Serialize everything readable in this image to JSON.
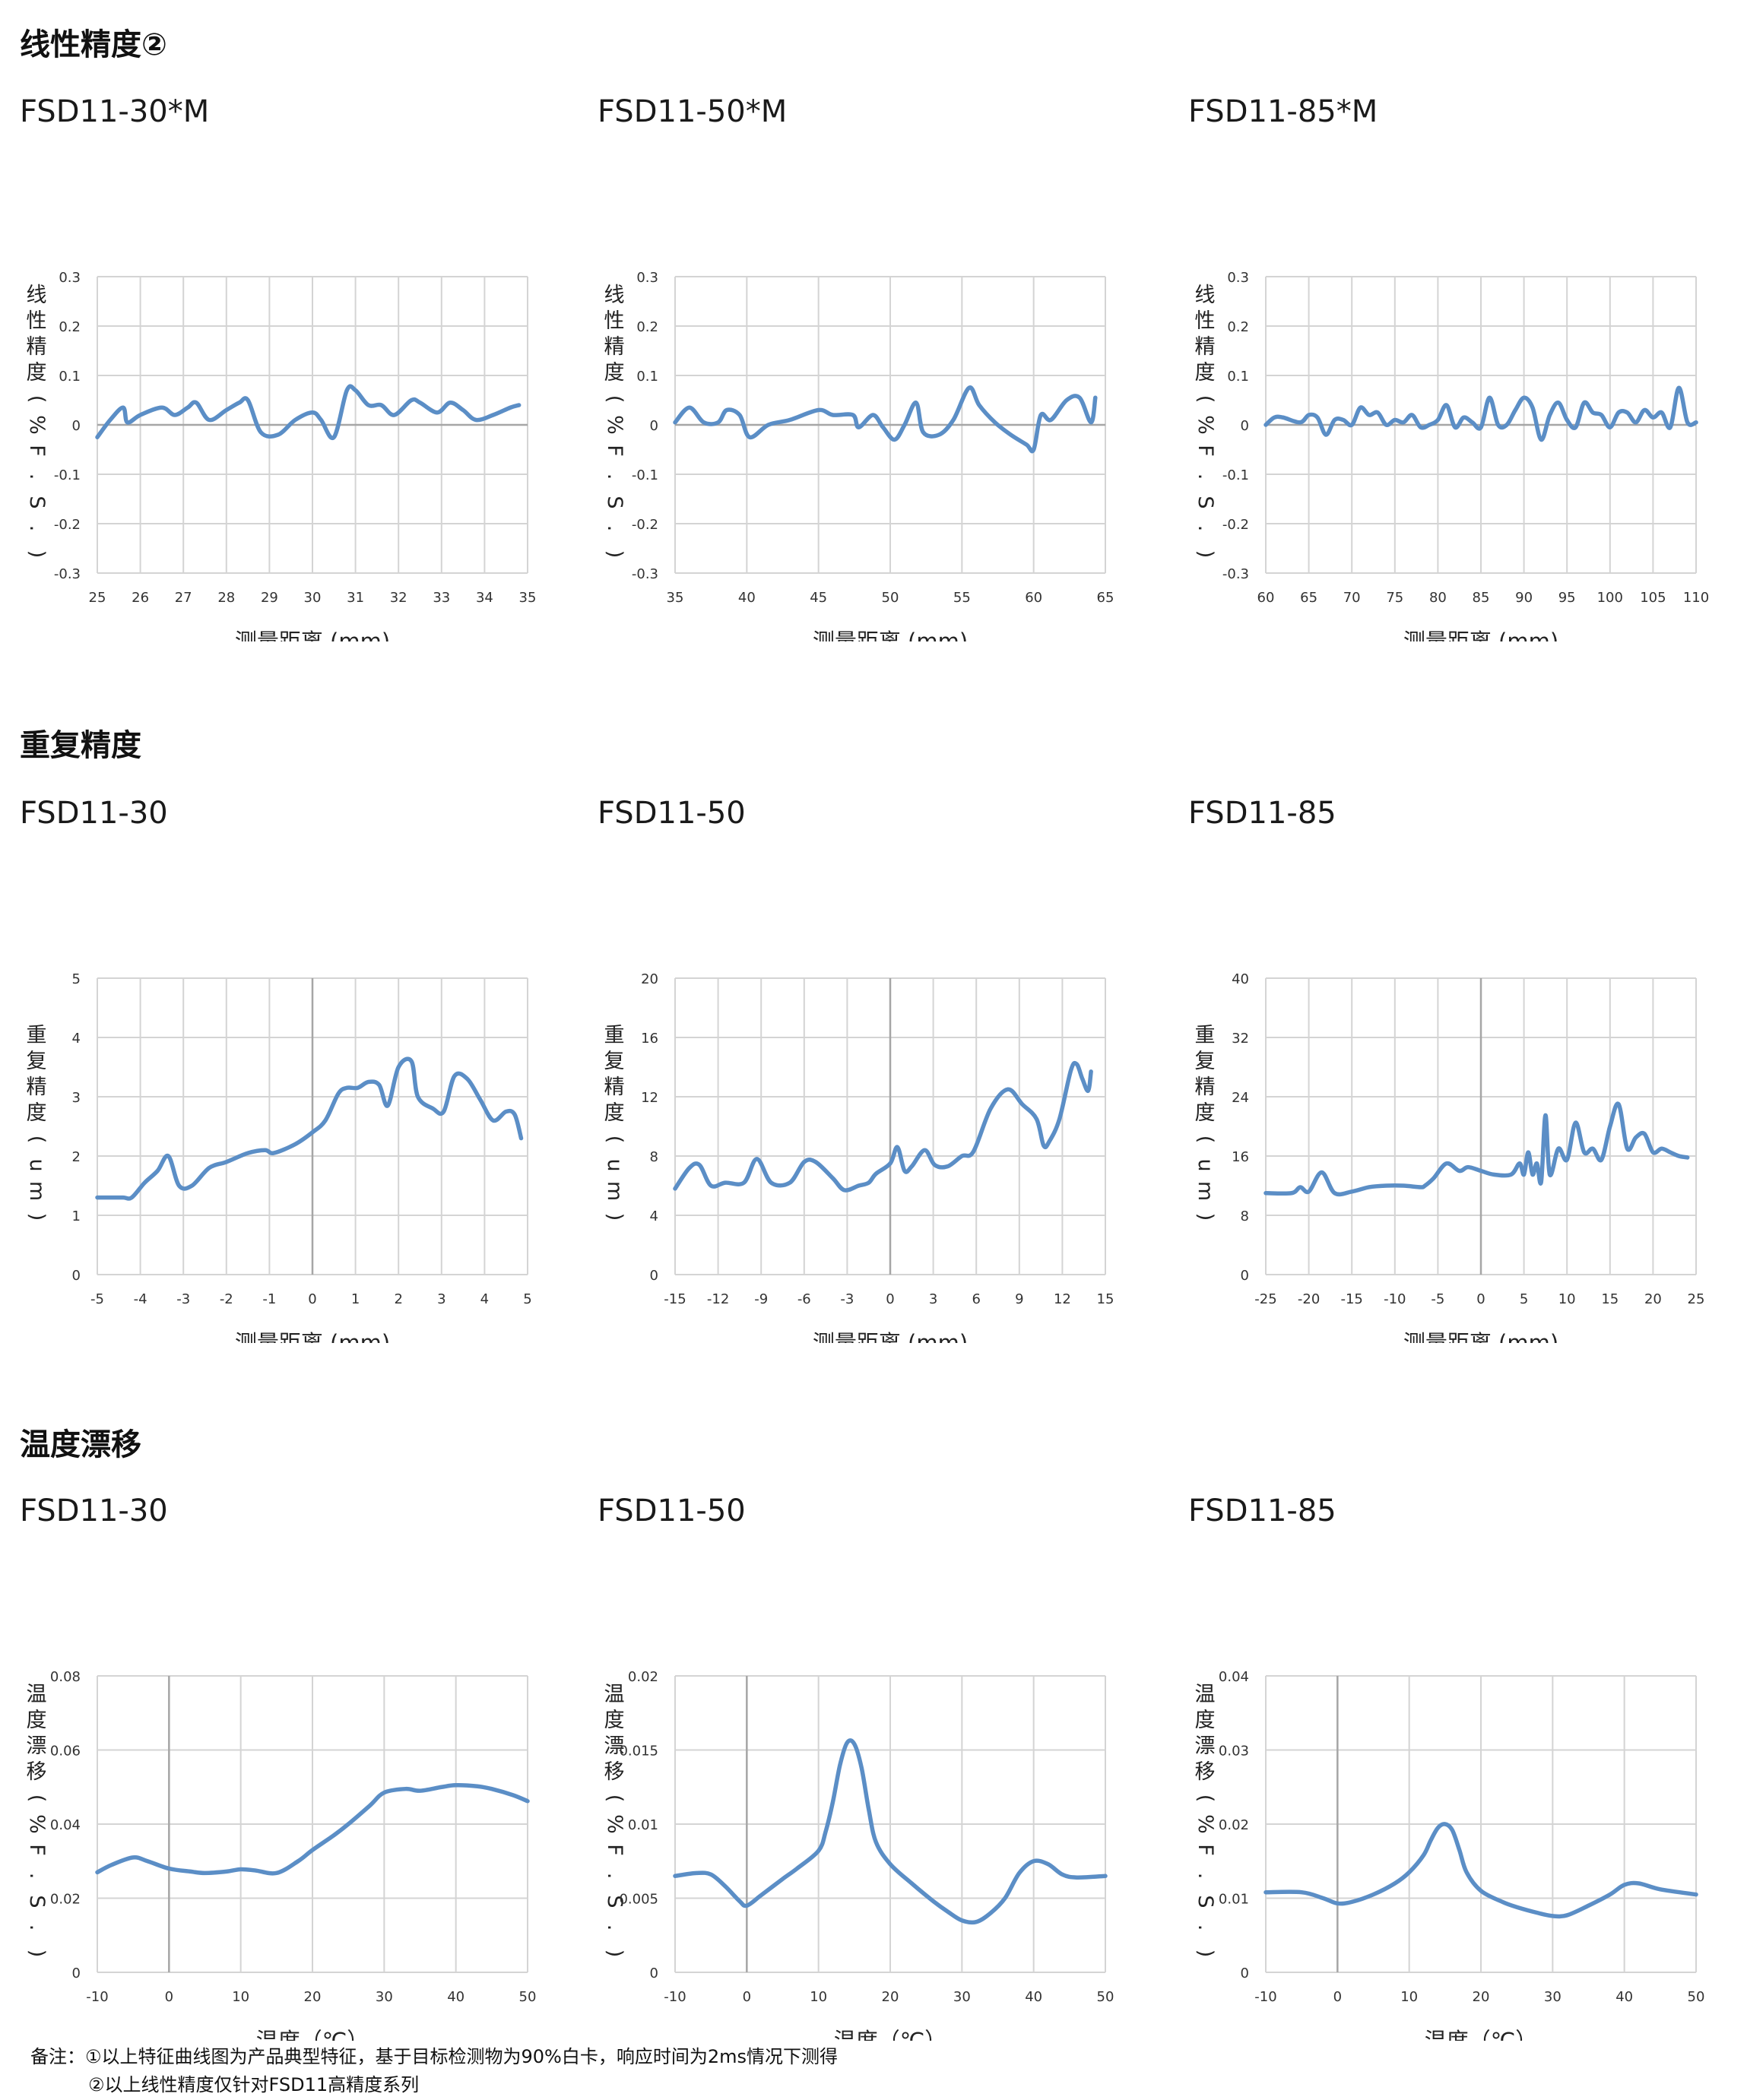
{
  "sections": [
    {
      "title": "线性精度②",
      "chart_indices": [
        0,
        1,
        2
      ]
    },
    {
      "title": "重复精度",
      "chart_indices": [
        3,
        4,
        5
      ]
    },
    {
      "title": "温度漂移",
      "chart_indices": [
        6,
        7,
        8
      ]
    }
  ],
  "notes": {
    "prefix": "备注：",
    "line1": "①以上特征曲线图为产品典型特征，基于目标检测物为90%白卡，响应时间为2ms情况下测得",
    "line2": "②以上线性精度仅针对FSD11高精度系列"
  },
  "colors": {
    "line": "#5b8ec6",
    "grid": "#d4d4d4",
    "axis": "#a6a6a6"
  },
  "chart_data": [
    {
      "type": "line",
      "title": "FSD11-30*M",
      "xlabel": "测量距离 (mm)",
      "ylabel": "线性精度 (%F.S.)",
      "xlim": [
        25,
        35
      ],
      "ylim": [
        -0.3,
        0.3
      ],
      "xticks": [
        25,
        26,
        27,
        28,
        29,
        30,
        31,
        32,
        33,
        34,
        35
      ],
      "yticks": [
        -0.3,
        -0.2,
        -0.1,
        0,
        0.1,
        0.2,
        0.3
      ],
      "ytick_labels": [
        "-0.3",
        "-0.2",
        "-0.1",
        "0",
        "0.1",
        "0.2",
        "0.3"
      ],
      "vline_x": null,
      "x": [
        25.0,
        25.3,
        25.6,
        25.7,
        26.0,
        26.5,
        26.8,
        27.1,
        27.3,
        27.6,
        28.0,
        28.3,
        28.5,
        28.8,
        29.2,
        29.6,
        30.0,
        30.2,
        30.5,
        30.8,
        31.0,
        31.3,
        31.6,
        31.9,
        32.3,
        32.5,
        32.9,
        33.2,
        33.5,
        33.8,
        34.2,
        34.6,
        34.8
      ],
      "values": [
        -0.025,
        0.01,
        0.035,
        0.005,
        0.02,
        0.035,
        0.02,
        0.035,
        0.045,
        0.01,
        0.03,
        0.045,
        0.05,
        -0.015,
        -0.02,
        0.01,
        0.025,
        0.01,
        -0.025,
        0.07,
        0.07,
        0.04,
        0.04,
        0.02,
        0.05,
        0.045,
        0.025,
        0.045,
        0.03,
        0.01,
        0.02,
        0.035,
        0.04
      ]
    },
    {
      "type": "line",
      "title": "FSD11-50*M",
      "xlabel": "测量距离 (mm)",
      "ylabel": "线性精度 (%F.S.)",
      "xlim": [
        35,
        65
      ],
      "ylim": [
        -0.3,
        0.3
      ],
      "xticks": [
        35,
        40,
        45,
        50,
        55,
        60,
        65
      ],
      "yticks": [
        -0.3,
        -0.2,
        -0.1,
        0,
        0.1,
        0.2,
        0.3
      ],
      "ytick_labels": [
        "-0.3",
        "-0.2",
        "-0.1",
        "0",
        "0.1",
        "0.2",
        "0.3"
      ],
      "vline_x": null,
      "x": [
        35,
        36,
        37,
        38,
        38.6,
        39.5,
        40.2,
        41.5,
        43,
        45,
        46,
        47.4,
        47.8,
        48.8,
        49.5,
        50.3,
        51,
        51.8,
        52.3,
        53.4,
        54.4,
        55.5,
        56.2,
        57.3,
        58.4,
        59.5,
        60,
        60.5,
        61.2,
        62.3,
        63.2,
        64,
        64.3
      ],
      "values": [
        0.005,
        0.035,
        0.005,
        0.005,
        0.03,
        0.02,
        -0.025,
        0.0,
        0.01,
        0.03,
        0.02,
        0.02,
        -0.005,
        0.02,
        -0.005,
        -0.03,
        0.0,
        0.045,
        -0.015,
        -0.02,
        0.01,
        0.075,
        0.04,
        0.005,
        -0.02,
        -0.04,
        -0.05,
        0.02,
        0.01,
        0.05,
        0.055,
        0.005,
        0.055
      ]
    },
    {
      "type": "line",
      "title": "FSD11-85*M",
      "xlabel": "测量距离 (mm)",
      "ylabel": "线性精度 (%F.S.)",
      "xlim": [
        60,
        110
      ],
      "ylim": [
        -0.3,
        0.3
      ],
      "xticks": [
        60,
        65,
        70,
        75,
        80,
        85,
        90,
        95,
        100,
        105,
        110
      ],
      "ytick_labels": [
        "-0.3",
        "-0.2",
        "-0.1",
        "0",
        "0.1",
        "0.2",
        "0.3"
      ],
      "yticks": [
        -0.3,
        -0.2,
        -0.1,
        0,
        0.1,
        0.2,
        0.3
      ],
      "vline_x": null,
      "x": [
        60,
        61,
        62,
        64,
        65,
        66,
        67,
        68,
        69,
        70,
        71,
        72,
        73,
        74,
        75,
        76,
        77,
        78,
        79,
        80,
        81,
        82,
        83,
        84,
        85,
        86,
        87,
        88,
        89,
        90,
        91,
        92,
        93,
        94,
        95,
        96,
        97,
        98,
        99,
        100,
        101,
        102,
        103,
        104,
        105,
        106,
        107,
        108,
        109,
        110
      ],
      "values": [
        0.0,
        0.015,
        0.015,
        0.005,
        0.02,
        0.015,
        -0.02,
        0.01,
        0.01,
        0.0,
        0.035,
        0.02,
        0.025,
        0.0,
        0.01,
        0.005,
        0.02,
        -0.005,
        0.0,
        0.01,
        0.04,
        -0.005,
        0.015,
        0.005,
        -0.005,
        0.055,
        0.0,
        0.0,
        0.03,
        0.055,
        0.035,
        -0.03,
        0.02,
        0.045,
        0.01,
        -0.005,
        0.045,
        0.025,
        0.02,
        -0.005,
        0.025,
        0.025,
        0.005,
        0.03,
        0.015,
        0.025,
        -0.005,
        0.075,
        0.005,
        0.005
      ]
    },
    {
      "type": "line",
      "title": "FSD11-30",
      "xlabel": "测量距离 (mm)",
      "ylabel": "重复精度 (um)",
      "xlim": [
        -5,
        5
      ],
      "ylim": [
        0,
        5
      ],
      "xticks": [
        -5,
        -4,
        -3,
        -2,
        -1,
        0,
        1,
        2,
        3,
        4,
        5
      ],
      "yticks": [
        0,
        1,
        2,
        3,
        4,
        5
      ],
      "ytick_labels": [
        "0",
        "1",
        "2",
        "3",
        "4",
        "5"
      ],
      "vline_x": 0,
      "x": [
        -5.0,
        -4.7,
        -4.4,
        -4.2,
        -3.9,
        -3.6,
        -3.35,
        -3.1,
        -2.8,
        -2.4,
        -2.0,
        -1.5,
        -1.1,
        -0.9,
        -0.4,
        0.0,
        0.3,
        0.6,
        0.8,
        1.05,
        1.3,
        1.55,
        1.75,
        2.0,
        2.3,
        2.45,
        2.8,
        3.05,
        3.3,
        3.6,
        3.9,
        4.2,
        4.5,
        4.7,
        4.85
      ],
      "values": [
        1.3,
        1.3,
        1.3,
        1.3,
        1.55,
        1.75,
        2.0,
        1.5,
        1.5,
        1.8,
        1.9,
        2.05,
        2.1,
        2.05,
        2.2,
        2.4,
        2.6,
        3.05,
        3.15,
        3.15,
        3.25,
        3.2,
        2.85,
        3.5,
        3.6,
        3.0,
        2.8,
        2.75,
        3.35,
        3.3,
        2.95,
        2.6,
        2.75,
        2.7,
        2.3
      ]
    },
    {
      "type": "line",
      "title": "FSD11-50",
      "xlabel": "测量距离 (mm)",
      "ylabel": "重复精度 (um)",
      "xlim": [
        -15,
        15
      ],
      "ylim": [
        0,
        20
      ],
      "xticks": [
        -15,
        -12,
        -9,
        -6,
        -3,
        0,
        3,
        6,
        9,
        12,
        15
      ],
      "xtick_labels": [
        "-15",
        "-12",
        "-9",
        "-6",
        "-3",
        "0",
        "3",
        "6",
        "9",
        "12",
        "15"
      ],
      "yticks": [
        0,
        4,
        8,
        12,
        16,
        20
      ],
      "ytick_labels": [
        "0",
        "4",
        "8",
        "12",
        "16",
        "20"
      ],
      "vline_x": 0,
      "x": [
        -15.0,
        -14.0,
        -13.3,
        -12.5,
        -11.5,
        -10.2,
        -9.3,
        -8.3,
        -7.0,
        -6.0,
        -5.2,
        -4.0,
        -3.2,
        -2.2,
        -1.5,
        -1.0,
        0.0,
        0.5,
        1.0,
        1.5,
        2.4,
        3.1,
        4.0,
        5.0,
        5.8,
        7.0,
        8.2,
        9.2,
        10.2,
        10.7,
        11.1,
        11.8,
        12.6,
        13.0,
        13.4,
        13.8,
        14.0
      ],
      "values": [
        5.8,
        7.2,
        7.4,
        6.0,
        6.2,
        6.2,
        7.8,
        6.2,
        6.2,
        7.6,
        7.6,
        6.5,
        5.7,
        6.0,
        6.2,
        6.8,
        7.5,
        8.6,
        7.0,
        7.3,
        8.4,
        7.4,
        7.3,
        8.0,
        8.3,
        11.2,
        12.5,
        11.5,
        10.5,
        8.7,
        9.0,
        10.5,
        13.8,
        14.2,
        13.2,
        12.4,
        13.7
      ]
    },
    {
      "type": "line",
      "title": "FSD11-85",
      "xlabel": "测量距离 (mm)",
      "ylabel": "重复精度 (um)",
      "xlim": [
        -25,
        25
      ],
      "ylim": [
        0,
        40
      ],
      "xticks": [
        -25,
        -20,
        -15,
        -10,
        -5,
        0,
        5,
        10,
        15,
        20,
        25
      ],
      "yticks": [
        0,
        8,
        16,
        24,
        32,
        40
      ],
      "ytick_labels": [
        "0",
        "8",
        "16",
        "24",
        "32",
        "40"
      ],
      "vline_x": 0,
      "x": [
        -25.0,
        -22.0,
        -21.0,
        -20.0,
        -18.5,
        -17.0,
        -15.0,
        -13.0,
        -11.0,
        -9.0,
        -7.0,
        -6.5,
        -5.5,
        -4.0,
        -2.5,
        -1.5,
        0.0,
        1.5,
        3.5,
        4.5,
        5.0,
        5.5,
        6.0,
        6.5,
        7.0,
        7.5,
        8.0,
        9.0,
        10.0,
        11.0,
        12.0,
        13.0,
        14.0,
        15.0,
        16.0,
        17.0,
        18.0,
        19.0,
        20.0,
        21.0,
        22.0,
        23.0,
        24.0
      ],
      "values": [
        11.0,
        11.0,
        11.8,
        11.2,
        13.8,
        11.0,
        11.2,
        11.8,
        12.0,
        12.0,
        11.8,
        12.0,
        13.0,
        15.0,
        14.0,
        14.5,
        14.0,
        13.5,
        13.5,
        15.0,
        13.5,
        16.5,
        13.5,
        15.0,
        12.5,
        21.5,
        13.5,
        17.0,
        15.5,
        20.5,
        16.5,
        17.0,
        15.5,
        20.0,
        23.0,
        17.0,
        18.5,
        19.0,
        16.5,
        17.0,
        16.5,
        16.0,
        15.8
      ]
    },
    {
      "type": "line",
      "title": "FSD11-30",
      "xlabel": "温度（℃）",
      "ylabel": "温度漂移 (%F.S.)",
      "xlim": [
        -10,
        50
      ],
      "ylim": [
        0,
        0.08
      ],
      "xticks": [
        -10,
        0,
        10,
        20,
        30,
        40,
        50
      ],
      "yticks": [
        0,
        0.02,
        0.04,
        0.06,
        0.08
      ],
      "ytick_labels": [
        "0",
        "0.02",
        "0.04",
        "0.06",
        "0.08"
      ],
      "vline_x": 0,
      "x": [
        -10,
        -8,
        -5,
        -3,
        0,
        3,
        5,
        8,
        10,
        12,
        15,
        18,
        20,
        23,
        25,
        28,
        30,
        33,
        35,
        38,
        40,
        43,
        45,
        48,
        50
      ],
      "values": [
        0.027,
        0.029,
        0.031,
        0.03,
        0.028,
        0.0272,
        0.0268,
        0.0272,
        0.0278,
        0.0275,
        0.0268,
        0.03,
        0.033,
        0.037,
        0.04,
        0.045,
        0.0485,
        0.0495,
        0.049,
        0.05,
        0.0505,
        0.0502,
        0.0495,
        0.0478,
        0.0462
      ]
    },
    {
      "type": "line",
      "title": "FSD11-50",
      "xlabel": "温度（℃）",
      "ylabel": "温度漂移 (%F.S.)",
      "xlim": [
        -10,
        50
      ],
      "ylim": [
        0,
        0.02
      ],
      "xticks": [
        -10,
        0,
        10,
        20,
        30,
        40,
        50
      ],
      "yticks": [
        0,
        0.005,
        0.01,
        0.015,
        0.02
      ],
      "ytick_labels": [
        "0",
        "0.005",
        "0.01",
        "0.015",
        "0.02"
      ],
      "vline_x": 0,
      "x": [
        -10,
        -7,
        -5,
        -3,
        -1,
        0,
        2,
        5,
        7,
        10,
        11,
        12,
        13,
        14,
        15,
        16,
        17,
        18,
        20,
        23,
        26,
        28,
        30,
        32,
        34,
        36,
        38,
        40,
        42,
        44,
        46,
        50
      ],
      "values": [
        0.0065,
        0.0067,
        0.0066,
        0.0058,
        0.0048,
        0.0045,
        0.0052,
        0.0063,
        0.007,
        0.0082,
        0.0095,
        0.0115,
        0.014,
        0.0155,
        0.0154,
        0.0138,
        0.011,
        0.0088,
        0.0073,
        0.006,
        0.0048,
        0.0041,
        0.0035,
        0.0034,
        0.004,
        0.005,
        0.0067,
        0.0075,
        0.0073,
        0.0066,
        0.0064,
        0.0065
      ]
    },
    {
      "type": "line",
      "title": "FSD11-85",
      "xlabel": "温度（℃）",
      "ylabel": "温度漂移 (%F.S.)",
      "xlim": [
        -10,
        50
      ],
      "ylim": [
        0,
        0.04
      ],
      "xticks": [
        -10,
        0,
        10,
        20,
        30,
        40,
        50
      ],
      "yticks": [
        0,
        0.01,
        0.02,
        0.03,
        0.04
      ],
      "ytick_labels": [
        "0",
        "0.01",
        "0.02",
        "0.03",
        "0.04"
      ],
      "vline_x": 0,
      "x": [
        -10,
        -5,
        -2,
        0,
        2,
        5,
        8,
        10,
        12,
        13,
        14,
        15,
        16,
        17,
        18,
        20,
        23,
        25,
        28,
        30,
        32,
        35,
        38,
        40,
        42,
        45,
        50
      ],
      "values": [
        0.0108,
        0.0108,
        0.01,
        0.0093,
        0.0095,
        0.0105,
        0.012,
        0.0135,
        0.0158,
        0.0178,
        0.0195,
        0.02,
        0.0192,
        0.0165,
        0.0135,
        0.011,
        0.0095,
        0.0088,
        0.008,
        0.0076,
        0.0077,
        0.009,
        0.0105,
        0.0118,
        0.012,
        0.0112,
        0.0105
      ]
    }
  ]
}
